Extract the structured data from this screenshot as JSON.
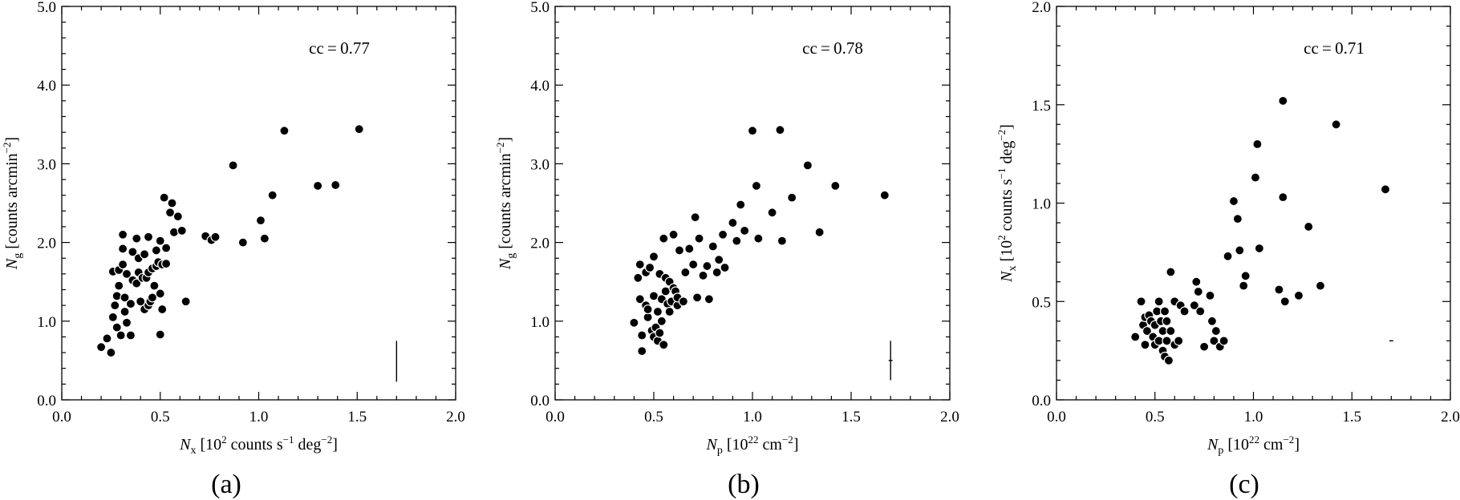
{
  "chart_data": [
    {
      "type": "scatter",
      "panel_label": "(a)",
      "annotation": "cc = 0.77",
      "xlabel": {
        "main": "N",
        "sub": "x",
        "pre": " [10",
        "sup1": "2",
        "mid": " counts s",
        "sup2": "−1",
        "mid2": " deg",
        "sup3": "−2",
        "post": "]"
      },
      "ylabel": {
        "main": "N",
        "sub": "g",
        "pre": " [counts arcmin",
        "sup1": "−2",
        "post": "]"
      },
      "xlim": [
        0,
        2
      ],
      "ylim": [
        0,
        5
      ],
      "xticks": [
        "0.0",
        "0.5",
        "1.0",
        "1.5",
        "2.0"
      ],
      "yticks": [
        "0.0",
        "1.0",
        "2.0",
        "3.0",
        "4.0",
        "5.0"
      ],
      "error_bar": {
        "x": 1.7,
        "y_low": 0.23,
        "y_high": 0.75
      },
      "points": [
        [
          0.2,
          0.67
        ],
        [
          0.23,
          0.78
        ],
        [
          0.25,
          0.6
        ],
        [
          0.26,
          1.05
        ],
        [
          0.27,
          1.2
        ],
        [
          0.26,
          1.63
        ],
        [
          0.28,
          0.92
        ],
        [
          0.28,
          1.32
        ],
        [
          0.29,
          1.65
        ],
        [
          0.29,
          1.45
        ],
        [
          0.31,
          1.72
        ],
        [
          0.31,
          1.92
        ],
        [
          0.31,
          2.1
        ],
        [
          0.3,
          0.82
        ],
        [
          0.32,
          1.3
        ],
        [
          0.32,
          1.12
        ],
        [
          0.33,
          1.6
        ],
        [
          0.33,
          0.98
        ],
        [
          0.35,
          0.82
        ],
        [
          0.35,
          1.22
        ],
        [
          0.36,
          1.52
        ],
        [
          0.36,
          1.88
        ],
        [
          0.38,
          1.48
        ],
        [
          0.38,
          2.05
        ],
        [
          0.39,
          1.8
        ],
        [
          0.39,
          1.62
        ],
        [
          0.4,
          1.25
        ],
        [
          0.41,
          1.55
        ],
        [
          0.42,
          1.15
        ],
        [
          0.42,
          1.85
        ],
        [
          0.43,
          1.55
        ],
        [
          0.44,
          1.62
        ],
        [
          0.44,
          2.07
        ],
        [
          0.44,
          1.2
        ],
        [
          0.45,
          1.25
        ],
        [
          0.46,
          1.67
        ],
        [
          0.46,
          1.3
        ],
        [
          0.47,
          1.45
        ],
        [
          0.48,
          1.9
        ],
        [
          0.48,
          1.7
        ],
        [
          0.49,
          1.75
        ],
        [
          0.5,
          1.35
        ],
        [
          0.5,
          0.83
        ],
        [
          0.5,
          2.02
        ],
        [
          0.51,
          1.72
        ],
        [
          0.51,
          1.15
        ],
        [
          0.52,
          2.57
        ],
        [
          0.53,
          1.93
        ],
        [
          0.53,
          1.73
        ],
        [
          0.55,
          2.38
        ],
        [
          0.56,
          2.5
        ],
        [
          0.57,
          2.13
        ],
        [
          0.59,
          2.33
        ],
        [
          0.61,
          2.15
        ],
        [
          0.63,
          1.25
        ],
        [
          0.73,
          2.08
        ],
        [
          0.76,
          2.03
        ],
        [
          0.78,
          2.07
        ],
        [
          0.87,
          2.98
        ],
        [
          0.92,
          2.0
        ],
        [
          1.01,
          2.28
        ],
        [
          1.03,
          2.05
        ],
        [
          1.07,
          2.6
        ],
        [
          1.13,
          3.42
        ],
        [
          1.3,
          2.72
        ],
        [
          1.39,
          2.73
        ],
        [
          1.51,
          3.44
        ]
      ]
    },
    {
      "type": "scatter",
      "panel_label": "(b)",
      "annotation": "cc = 0.78",
      "xlabel": {
        "main": "N",
        "sub": "p",
        "pre": " [10",
        "sup1": "22",
        "mid": " cm",
        "sup2": "−2",
        "post": "]"
      },
      "ylabel": {
        "main": "N",
        "sub": "g",
        "pre": " [counts arcmin",
        "sup1": "−2",
        "post": "]"
      },
      "xlim": [
        0,
        2
      ],
      "ylim": [
        0,
        5
      ],
      "xticks": [
        "0.0",
        "0.5",
        "1.0",
        "1.5",
        "2.0"
      ],
      "yticks": [
        "0.0",
        "1.0",
        "2.0",
        "3.0",
        "4.0",
        "5.0"
      ],
      "error_bar": {
        "x": 1.7,
        "y_low": 0.25,
        "y_high": 0.75,
        "x_low": 1.69,
        "x_high": 1.71
      },
      "points": [
        [
          0.4,
          0.98
        ],
        [
          0.42,
          1.55
        ],
        [
          0.43,
          1.28
        ],
        [
          0.43,
          1.72
        ],
        [
          0.44,
          0.62
        ],
        [
          0.44,
          0.82
        ],
        [
          0.46,
          1.2
        ],
        [
          0.46,
          1.62
        ],
        [
          0.47,
          1.05
        ],
        [
          0.47,
          1.15
        ],
        [
          0.48,
          1.68
        ],
        [
          0.49,
          0.88
        ],
        [
          0.5,
          0.8
        ],
        [
          0.5,
          1.32
        ],
        [
          0.5,
          1.82
        ],
        [
          0.51,
          0.92
        ],
        [
          0.52,
          0.75
        ],
        [
          0.52,
          1.12
        ],
        [
          0.53,
          0.85
        ],
        [
          0.53,
          1.6
        ],
        [
          0.54,
          1.28
        ],
        [
          0.54,
          1.0
        ],
        [
          0.55,
          2.05
        ],
        [
          0.55,
          0.7
        ],
        [
          0.56,
          1.38
        ],
        [
          0.56,
          1.55
        ],
        [
          0.57,
          1.22
        ],
        [
          0.58,
          1.5
        ],
        [
          0.58,
          1.12
        ],
        [
          0.59,
          1.25
        ],
        [
          0.6,
          1.42
        ],
        [
          0.6,
          2.1
        ],
        [
          0.61,
          1.38
        ],
        [
          0.62,
          1.2
        ],
        [
          0.62,
          1.3
        ],
        [
          0.63,
          1.9
        ],
        [
          0.65,
          1.25
        ],
        [
          0.66,
          1.62
        ],
        [
          0.68,
          1.92
        ],
        [
          0.7,
          1.72
        ],
        [
          0.71,
          2.32
        ],
        [
          0.72,
          1.3
        ],
        [
          0.73,
          2.05
        ],
        [
          0.75,
          1.58
        ],
        [
          0.77,
          1.7
        ],
        [
          0.78,
          1.28
        ],
        [
          0.8,
          1.95
        ],
        [
          0.82,
          1.62
        ],
        [
          0.83,
          1.78
        ],
        [
          0.85,
          2.1
        ],
        [
          0.86,
          1.68
        ],
        [
          0.9,
          2.25
        ],
        [
          0.92,
          2.02
        ],
        [
          0.94,
          2.48
        ],
        [
          0.96,
          2.15
        ],
        [
          1.0,
          3.42
        ],
        [
          1.02,
          2.72
        ],
        [
          1.03,
          2.05
        ],
        [
          1.1,
          2.38
        ],
        [
          1.14,
          3.43
        ],
        [
          1.15,
          2.02
        ],
        [
          1.2,
          2.57
        ],
        [
          1.28,
          2.98
        ],
        [
          1.34,
          2.13
        ],
        [
          1.42,
          2.72
        ],
        [
          1.67,
          2.6
        ]
      ]
    },
    {
      "type": "scatter",
      "panel_label": "(c)",
      "annotation": "cc = 0.71",
      "xlabel": {
        "main": "N",
        "sub": "p",
        "pre": " [10",
        "sup1": "22",
        "mid": " cm",
        "sup2": "−2",
        "post": "]"
      },
      "ylabel": {
        "main": "N",
        "sub": "x",
        "pre": " [10",
        "sup1": "2",
        "mid": " counts s",
        "sup2": "−1",
        "mid2": " deg",
        "sup3": "−2",
        "post": "]"
      },
      "xlim": [
        0,
        2
      ],
      "ylim": [
        0,
        2
      ],
      "xticks": [
        "0.0",
        "0.5",
        "1.0",
        "1.5",
        "2.0"
      ],
      "yticks": [
        "0.0",
        "0.5",
        "1.0",
        "1.5",
        "2.0"
      ],
      "error_bar": {
        "x": 1.7,
        "y_low": 0.298,
        "y_high": 0.302,
        "x_low": 1.69,
        "x_high": 1.71
      },
      "points": [
        [
          0.4,
          0.32
        ],
        [
          0.43,
          0.5
        ],
        [
          0.44,
          0.38
        ],
        [
          0.45,
          0.42
        ],
        [
          0.45,
          0.28
        ],
        [
          0.46,
          0.35
        ],
        [
          0.47,
          0.43
        ],
        [
          0.48,
          0.4
        ],
        [
          0.49,
          0.32
        ],
        [
          0.5,
          0.38
        ],
        [
          0.5,
          0.28
        ],
        [
          0.51,
          0.45
        ],
        [
          0.52,
          0.3
        ],
        [
          0.52,
          0.5
        ],
        [
          0.53,
          0.4
        ],
        [
          0.54,
          0.25
        ],
        [
          0.54,
          0.35
        ],
        [
          0.55,
          0.22
        ],
        [
          0.55,
          0.45
        ],
        [
          0.56,
          0.4
        ],
        [
          0.56,
          0.3
        ],
        [
          0.57,
          0.2
        ],
        [
          0.58,
          0.35
        ],
        [
          0.58,
          0.65
        ],
        [
          0.6,
          0.28
        ],
        [
          0.6,
          0.5
        ],
        [
          0.62,
          0.3
        ],
        [
          0.63,
          0.48
        ],
        [
          0.65,
          0.45
        ],
        [
          0.7,
          0.48
        ],
        [
          0.71,
          0.6
        ],
        [
          0.72,
          0.55
        ],
        [
          0.73,
          0.45
        ],
        [
          0.75,
          0.27
        ],
        [
          0.78,
          0.53
        ],
        [
          0.79,
          0.4
        ],
        [
          0.8,
          0.3
        ],
        [
          0.81,
          0.35
        ],
        [
          0.83,
          0.27
        ],
        [
          0.85,
          0.3
        ],
        [
          0.87,
          0.73
        ],
        [
          0.9,
          1.01
        ],
        [
          0.92,
          0.92
        ],
        [
          0.93,
          0.76
        ],
        [
          0.95,
          0.58
        ],
        [
          0.96,
          0.63
        ],
        [
          1.01,
          1.13
        ],
        [
          1.02,
          1.3
        ],
        [
          1.03,
          0.77
        ],
        [
          1.13,
          0.56
        ],
        [
          1.15,
          1.52
        ],
        [
          1.15,
          1.03
        ],
        [
          1.16,
          0.5
        ],
        [
          1.23,
          0.53
        ],
        [
          1.28,
          0.88
        ],
        [
          1.34,
          0.58
        ],
        [
          1.42,
          1.4
        ],
        [
          1.67,
          1.07
        ]
      ]
    }
  ]
}
